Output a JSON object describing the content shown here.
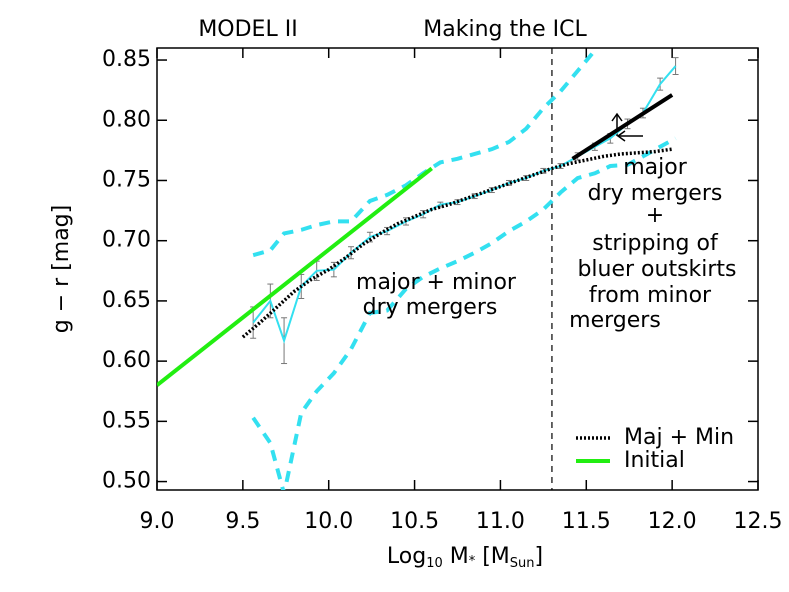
{
  "chart_data": {
    "type": "line",
    "titles": [
      "MODEL II",
      "Making the ICL"
    ],
    "y_label": [
      "g − r [mag]"
    ],
    "x_label": [
      "Log",
      "10",
      " M",
      "*",
      " [M",
      "Sun",
      "]"
    ],
    "xlim": [
      9.0,
      12.5
    ],
    "ylim": [
      0.493,
      0.86
    ],
    "xticks": [
      {
        "value": 9.0,
        "label": "9.0"
      },
      {
        "value": 9.5,
        "label": "9.5"
      },
      {
        "value": 10.0,
        "label": "10.0"
      },
      {
        "value": 10.5,
        "label": "10.5"
      },
      {
        "value": 11.0,
        "label": "11.0"
      },
      {
        "value": 11.5,
        "label": "11.5"
      },
      {
        "value": 12.0,
        "label": "12.0"
      },
      {
        "value": 12.5,
        "label": "12.5"
      }
    ],
    "yticks": [
      {
        "value": 0.5,
        "label": "0.50"
      },
      {
        "value": 0.55,
        "label": "0.55"
      },
      {
        "value": 0.6,
        "label": "0.60"
      },
      {
        "value": 0.65,
        "label": "0.65"
      },
      {
        "value": 0.7,
        "label": "0.70"
      },
      {
        "value": 0.75,
        "label": "0.75"
      },
      {
        "value": 0.8,
        "label": "0.80"
      },
      {
        "value": 0.85,
        "label": "0.85"
      }
    ],
    "vline": 11.3,
    "legend": "lower right",
    "series": [
      {
        "color": "#33e0f0",
        "style": "dashed",
        "x": [
          9.56,
          9.66,
          9.74,
          9.84,
          9.93,
          10.03,
          10.13,
          10.24,
          10.34,
          10.45,
          10.55,
          10.65,
          10.75,
          10.85,
          10.95,
          11.05,
          11.15,
          11.25,
          11.35,
          11.45,
          11.55
        ],
        "values": [
          0.688,
          0.692,
          0.706,
          0.709,
          0.713,
          0.716,
          0.716,
          0.733,
          0.738,
          0.746,
          0.756,
          0.765,
          0.768,
          0.772,
          0.776,
          0.782,
          0.793,
          0.81,
          0.824,
          0.841,
          0.858
        ]
      },
      {
        "color": "#33e0f0",
        "style": "dashed",
        "x": [
          9.56,
          9.66,
          9.74,
          9.84,
          9.93,
          10.03,
          10.13,
          10.24,
          10.34,
          10.45,
          10.55,
          10.65,
          10.75,
          10.85,
          10.95,
          11.05,
          11.15,
          11.25,
          11.35,
          11.45,
          11.55,
          11.64,
          11.74,
          11.83,
          11.93,
          12.02
        ],
        "values": [
          0.553,
          0.532,
          0.49,
          0.557,
          0.575,
          0.59,
          0.61,
          0.64,
          0.642,
          0.66,
          0.67,
          0.677,
          0.683,
          0.69,
          0.698,
          0.708,
          0.716,
          0.726,
          0.74,
          0.752,
          0.756,
          0.762,
          0.763,
          0.77,
          0.778,
          0.785
        ]
      },
      {
        "color": "#33e0f0",
        "style": "solid",
        "x": [
          9.56,
          9.66,
          9.74,
          9.84,
          9.93,
          10.03,
          10.13,
          10.24,
          10.34,
          10.45,
          10.55,
          10.65,
          10.75,
          10.85,
          10.95,
          11.05,
          11.15,
          11.25,
          11.35,
          11.45,
          11.55,
          11.64,
          11.74,
          11.83,
          11.93,
          12.02
        ],
        "values": [
          0.632,
          0.65,
          0.617,
          0.662,
          0.675,
          0.676,
          0.69,
          0.703,
          0.708,
          0.716,
          0.722,
          0.73,
          0.732,
          0.737,
          0.742,
          0.748,
          0.752,
          0.758,
          0.762,
          0.77,
          0.778,
          0.785,
          0.797,
          0.806,
          0.83,
          0.845
        ],
        "errors": [
          0.013,
          0.014,
          0.019,
          0.01,
          0.008,
          0.006,
          0.005,
          0.004,
          0.003,
          0.003,
          0.003,
          0.002,
          0.002,
          0.002,
          0.002,
          0.002,
          0.002,
          0.002,
          0.002,
          0.003,
          0.003,
          0.004,
          0.004,
          0.004,
          0.005,
          0.007
        ]
      },
      {
        "name": "Maj + Min",
        "color": "#000000",
        "style": "dotted",
        "x": [
          9.5,
          9.6,
          9.7,
          9.8,
          9.9,
          10.0,
          10.1,
          10.2,
          10.3,
          10.4,
          10.5,
          10.6,
          10.7,
          10.8,
          10.9,
          11.0,
          11.1,
          11.2,
          11.3,
          11.4,
          11.5,
          11.6,
          11.7,
          11.8,
          11.9,
          12.0
        ],
        "values": [
          0.62,
          0.632,
          0.645,
          0.658,
          0.668,
          0.676,
          0.686,
          0.697,
          0.706,
          0.714,
          0.72,
          0.726,
          0.73,
          0.735,
          0.74,
          0.745,
          0.75,
          0.755,
          0.76,
          0.764,
          0.767,
          0.77,
          0.772,
          0.773,
          0.774,
          0.776
        ]
      },
      {
        "name": "Initial",
        "color": "#22ee11",
        "style": "solid",
        "x": [
          9.0,
          10.6
        ],
        "values": [
          0.58,
          0.76
        ]
      },
      {
        "color": "#000000",
        "style": "thick",
        "x": [
          11.42,
          12.0
        ],
        "values": [
          0.768,
          0.821
        ]
      }
    ],
    "annotations": [
      [
        "major + minor",
        "dry mergers"
      ],
      [
        "major",
        "dry mergers",
        "+",
        "stripping of",
        "bluer outskirts",
        "from minor",
        "mergers"
      ]
    ]
  }
}
